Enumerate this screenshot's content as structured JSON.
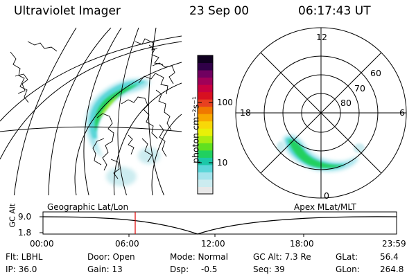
{
  "header": {
    "instrument": "Ultraviolet Imager",
    "date": "23 Sep 00",
    "time": "06:17:43 UT"
  },
  "colorbar": {
    "label": "photon cm⁻²s⁻¹",
    "ticks": [
      "100",
      "10"
    ],
    "colors": [
      "#e8e8e8",
      "#ccecf0",
      "#a4e4ec",
      "#5ad6d8",
      "#1cc8a8",
      "#20d060",
      "#60e020",
      "#a8ec10",
      "#e8f008",
      "#f8d808",
      "#f8a800",
      "#f07800",
      "#e84020",
      "#d81020",
      "#c80040",
      "#a00058",
      "#700060",
      "#300048",
      "#100020"
    ]
  },
  "left_map": {
    "title": "Geographic Lat/Lon"
  },
  "polar_plot": {
    "title": "Apex MLat/MLT",
    "mlt_labels": {
      "top": "12",
      "right": "6",
      "bottom": "0",
      "left": "18"
    },
    "lat_labels": [
      "60",
      "70",
      "80"
    ]
  },
  "timeline": {
    "axis_label": "GC Alt",
    "y_ticks": [
      "9.0",
      "1.8"
    ],
    "x_ticks": [
      "00:00",
      "06:00",
      "12:00",
      "18:00",
      "23:59"
    ],
    "current_marker_time": "06:17"
  },
  "info": {
    "col1": [
      "Flt: LBHL",
      "IP: 36.0"
    ],
    "col2": [
      "Door: Open",
      "Gain: 13"
    ],
    "col3": [
      "Mode: Normal",
      "Dsp:"
    ],
    "col3_value": "-0.5",
    "col4": [
      "GC Alt: 7.3 Re",
      "Seq: 39"
    ],
    "col5": [
      "GLat:",
      "GLon:"
    ],
    "col5_values": [
      "56.4",
      "264.8"
    ]
  }
}
